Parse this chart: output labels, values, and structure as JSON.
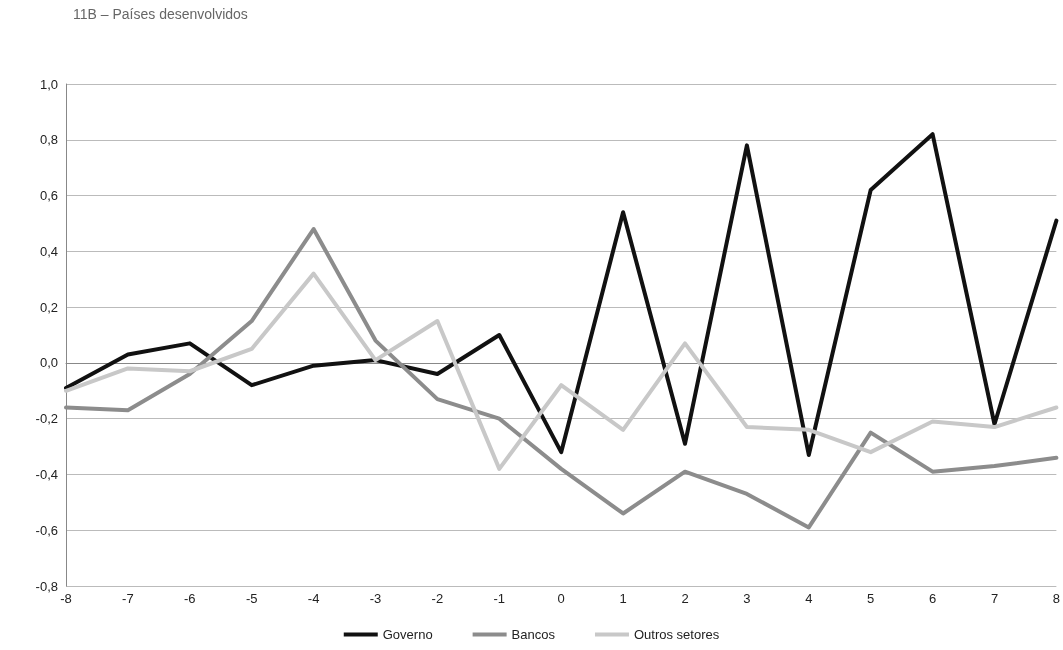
{
  "chart_data": {
    "type": "line",
    "title": "11B – Países desenvolvidos",
    "categories": [
      "-8",
      "-7",
      "-6",
      "-5",
      "-4",
      "-3",
      "-2",
      "-1",
      "0",
      "1",
      "2",
      "3",
      "4",
      "5",
      "6",
      "7",
      "8"
    ],
    "series": [
      {
        "name": "Governo",
        "color": "#111111",
        "values": [
          -0.09,
          0.03,
          0.07,
          -0.08,
          -0.01,
          0.01,
          -0.04,
          0.1,
          -0.32,
          0.54,
          -0.29,
          0.78,
          -0.33,
          0.62,
          0.82,
          -0.22,
          0.51
        ]
      },
      {
        "name": "Bancos",
        "color": "#8c8c8c",
        "values": [
          -0.16,
          -0.17,
          -0.04,
          0.15,
          0.48,
          0.08,
          -0.13,
          -0.2,
          -0.38,
          -0.54,
          -0.39,
          -0.47,
          -0.59,
          -0.25,
          -0.39,
          -0.37,
          -0.34
        ]
      },
      {
        "name": "Outros setores",
        "color": "#c8c8c8",
        "values": [
          -0.1,
          -0.02,
          -0.03,
          0.05,
          0.32,
          0.01,
          0.15,
          -0.38,
          -0.08,
          -0.24,
          0.07,
          -0.23,
          -0.24,
          -0.32,
          -0.21,
          -0.23,
          -0.16
        ]
      }
    ],
    "ylim": [
      -0.8,
      1.0
    ],
    "yticks": [
      {
        "value": -0.8,
        "label": "-0,8"
      },
      {
        "value": -0.6,
        "label": "-0,6"
      },
      {
        "value": -0.4,
        "label": "-0,4"
      },
      {
        "value": -0.2,
        "label": "-0,2"
      },
      {
        "value": 0,
        "label": "0,0"
      },
      {
        "value": 0.2,
        "label": "0,2"
      },
      {
        "value": 0.4,
        "label": "0,4"
      },
      {
        "value": 0.6,
        "label": "0,6"
      },
      {
        "value": 0.8,
        "label": "0,8"
      },
      {
        "value": 1.0,
        "label": "1,0"
      }
    ],
    "grid": "y",
    "legend": "bottom",
    "marker": "none",
    "line_style": "solid"
  }
}
